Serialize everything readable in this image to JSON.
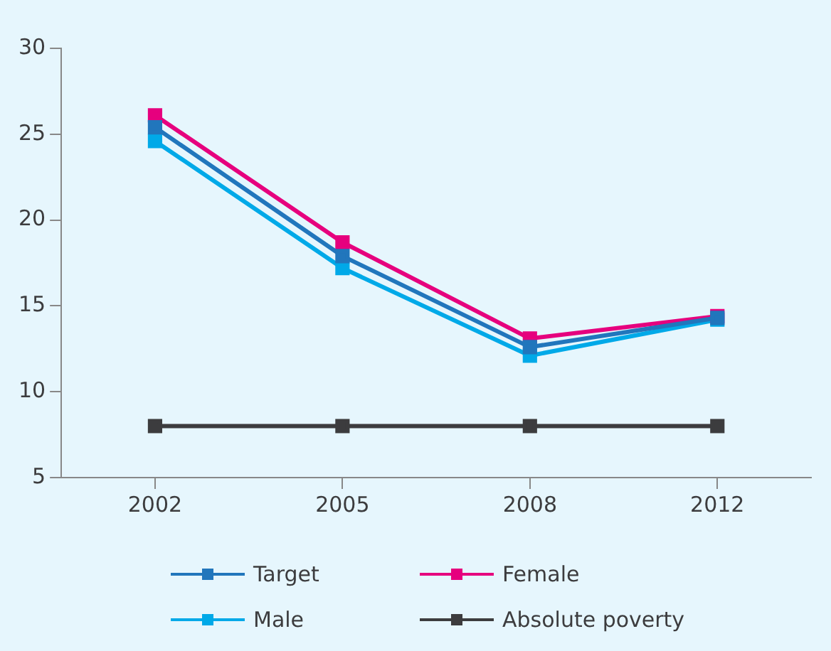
{
  "chart_data": {
    "type": "line",
    "categories": [
      "2002",
      "2005",
      "2008",
      "2012"
    ],
    "series": [
      {
        "name": "Target",
        "color": "#2176bc",
        "values": [
          25.4,
          17.9,
          12.6,
          14.3
        ]
      },
      {
        "name": "Female",
        "color": "#e6007e",
        "values": [
          26.1,
          18.7,
          13.1,
          14.4
        ]
      },
      {
        "name": "Male",
        "color": "#00a9e8",
        "values": [
          24.6,
          17.2,
          12.1,
          14.2
        ]
      },
      {
        "name": "Absolute poverty",
        "color": "#3c3c3e",
        "values": [
          8,
          8,
          8,
          8
        ]
      }
    ],
    "ylim": [
      5,
      30
    ],
    "yticks": [
      5,
      10,
      15,
      20,
      25,
      30
    ],
    "grid": false,
    "legend": "bottom",
    "marker": "square",
    "line_style": "solid"
  }
}
